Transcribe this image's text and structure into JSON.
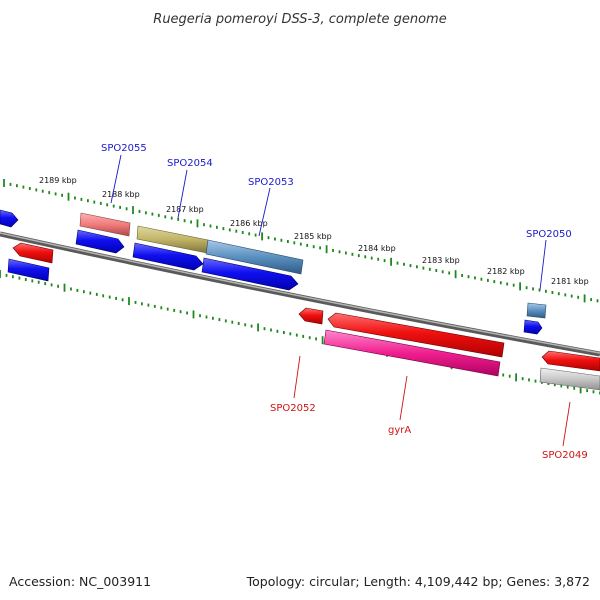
{
  "title": "Ruegeria pomeroyi DSS-3, complete genome",
  "footer": {
    "accession": "Accession: NC_003911",
    "summary": "Topology: circular; Length: 4,109,442 bp; Genes: 3,872"
  },
  "colors": {
    "backbone": "#8a8a8a",
    "ticks": "#1e8a1e",
    "forward_label": "#1a1acc",
    "reverse_label": "#d01414",
    "cds_forward": "#1010f0",
    "cds_reverse": "#f01010"
  },
  "kbp_labels": [
    "2189 kbp",
    "2188 kbp",
    "2187 kbp",
    "2186 kbp",
    "2185 kbp",
    "2184 kbp",
    "2183 kbp",
    "2182 kbp",
    "2181 kbp"
  ],
  "forward_labels": [
    "SPO2055",
    "SPO2054",
    "SPO2053",
    "SPO2050"
  ],
  "reverse_labels": [
    "SPO2052",
    "gyrA",
    "SPO2049"
  ]
}
